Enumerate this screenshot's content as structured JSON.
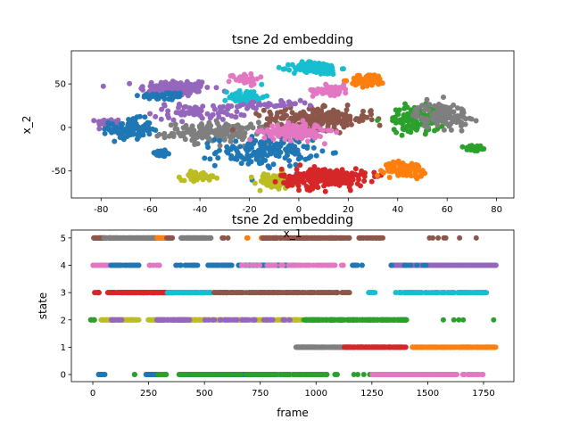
{
  "colors": {
    "blue": "#1f77b4",
    "orange": "#ff7f0e",
    "green": "#2ca02c",
    "red": "#d62728",
    "purple": "#9467bd",
    "brown": "#8c564b",
    "pink": "#e377c2",
    "gray": "#7f7f7f",
    "olive": "#bcbd22",
    "cyan": "#17becf"
  },
  "chart_data": [
    {
      "type": "scatter",
      "title": "tsne 2d embedding",
      "xlabel": "x_1",
      "ylabel": "x_2",
      "xlim": [
        -92,
        87
      ],
      "ylim": [
        -81,
        88
      ],
      "xticks": [
        -80,
        -60,
        -40,
        -20,
        0,
        20,
        40,
        60,
        80
      ],
      "yticks": [
        -50,
        0,
        50
      ],
      "note": "clusters given as center/spread in data units; points sampled deterministically",
      "clusters": [
        {
          "color": "purple",
          "cx": -50,
          "cy": 45,
          "sx": 12,
          "sy": 8,
          "n": 120
        },
        {
          "color": "blue",
          "cx": -55,
          "cy": 36,
          "sx": 8,
          "sy": 4,
          "n": 50
        },
        {
          "color": "purple",
          "cx": -77,
          "cy": 6,
          "sx": 4,
          "sy": 3,
          "n": 25
        },
        {
          "color": "blue",
          "cx": -68,
          "cy": -2,
          "sx": 7,
          "sy": 10,
          "n": 110
        },
        {
          "color": "purple",
          "cx": -40,
          "cy": 18,
          "sx": 16,
          "sy": 8,
          "n": 70
        },
        {
          "color": "gray",
          "cx": -32,
          "cy": -6,
          "sx": 18,
          "sy": 9,
          "n": 170
        },
        {
          "color": "blue",
          "cx": -14,
          "cy": -28,
          "sx": 16,
          "sy": 14,
          "n": 150
        },
        {
          "color": "blue",
          "cx": -56,
          "cy": -30,
          "sx": 4,
          "sy": 3,
          "n": 30
        },
        {
          "color": "olive",
          "cx": -40,
          "cy": -56,
          "sx": 6,
          "sy": 4,
          "n": 55
        },
        {
          "color": "olive",
          "cx": -10,
          "cy": -62,
          "sx": 6,
          "sy": 8,
          "n": 60
        },
        {
          "color": "pink",
          "cx": -22,
          "cy": 56,
          "sx": 5,
          "sy": 5,
          "n": 40
        },
        {
          "color": "cyan",
          "cx": -21,
          "cy": 35,
          "sx": 6,
          "sy": 7,
          "n": 70
        },
        {
          "color": "cyan",
          "cx": 7,
          "cy": 68,
          "sx": 8,
          "sy": 6,
          "n": 110
        },
        {
          "color": "orange",
          "cx": 28,
          "cy": 54,
          "sx": 6,
          "sy": 6,
          "n": 70
        },
        {
          "color": "pink",
          "cx": 13,
          "cy": 43,
          "sx": 6,
          "sy": 5,
          "n": 60
        },
        {
          "color": "brown",
          "cx": 8,
          "cy": 10,
          "sx": 18,
          "sy": 10,
          "n": 220
        },
        {
          "color": "pink",
          "cx": -2,
          "cy": -5,
          "sx": 10,
          "sy": 8,
          "n": 130
        },
        {
          "color": "purple",
          "cx": -12,
          "cy": 25,
          "sx": 14,
          "sy": 4,
          "n": 35
        },
        {
          "color": "green",
          "cx": 48,
          "cy": 10,
          "sx": 9,
          "sy": 12,
          "n": 140
        },
        {
          "color": "gray",
          "cx": 58,
          "cy": 14,
          "sx": 9,
          "sy": 12,
          "n": 110
        },
        {
          "color": "green",
          "cx": 71,
          "cy": -24,
          "sx": 4,
          "sy": 4,
          "n": 35
        },
        {
          "color": "red",
          "cx": 10,
          "cy": -58,
          "sx": 14,
          "sy": 9,
          "n": 260
        },
        {
          "color": "orange",
          "cx": 43,
          "cy": -48,
          "sx": 7,
          "sy": 7,
          "n": 80
        }
      ]
    },
    {
      "type": "scatter",
      "title": "tsne 2d embedding",
      "xlabel": "frame",
      "ylabel": "state",
      "xlim": [
        -96,
        1886
      ],
      "ylim": [
        -0.26,
        5.29
      ],
      "xticks": [
        0,
        250,
        500,
        750,
        1000,
        1250,
        1500,
        1750
      ],
      "yticks": [
        0,
        1,
        2,
        3,
        4,
        5
      ],
      "note": "runs of frames per state and color; density = points per 10 frames",
      "segments": [
        {
          "state": 5,
          "color": "brown",
          "from": 0,
          "to": 60,
          "d": 6
        },
        {
          "state": 5,
          "color": "gray",
          "from": 50,
          "to": 300,
          "d": 8
        },
        {
          "state": 5,
          "color": "orange",
          "from": 285,
          "to": 330,
          "d": 5
        },
        {
          "state": 5,
          "color": "brown",
          "from": 330,
          "to": 360,
          "d": 4
        },
        {
          "state": 5,
          "color": "gray",
          "from": 395,
          "to": 530,
          "d": 8
        },
        {
          "state": 5,
          "color": "brown",
          "from": 580,
          "to": 620,
          "d": 1
        },
        {
          "state": 5,
          "color": "orange",
          "from": 690,
          "to": 695,
          "d": 5
        },
        {
          "state": 5,
          "color": "orange",
          "from": 755,
          "to": 760,
          "d": 5
        },
        {
          "state": 5,
          "color": "brown",
          "from": 760,
          "to": 1150,
          "d": 5
        },
        {
          "state": 5,
          "color": "brown",
          "from": 1180,
          "to": 1310,
          "d": 2
        },
        {
          "state": 5,
          "color": "brown",
          "from": 1500,
          "to": 1745,
          "d": 0.3
        },
        {
          "state": 4,
          "color": "pink",
          "from": 0,
          "to": 70,
          "d": 8
        },
        {
          "state": 4,
          "color": "blue",
          "from": 70,
          "to": 210,
          "d": 3
        },
        {
          "state": 4,
          "color": "pink",
          "from": 245,
          "to": 305,
          "d": 1.5
        },
        {
          "state": 4,
          "color": "blue",
          "from": 365,
          "to": 470,
          "d": 2
        },
        {
          "state": 4,
          "color": "blue",
          "from": 515,
          "to": 625,
          "d": 4
        },
        {
          "state": 4,
          "color": "blue",
          "from": 650,
          "to": 915,
          "d": 5
        },
        {
          "state": 4,
          "color": "pink",
          "from": 650,
          "to": 915,
          "d": 1
        },
        {
          "state": 4,
          "color": "pink",
          "from": 915,
          "to": 1125,
          "d": 2
        },
        {
          "state": 4,
          "color": "blue",
          "from": 1155,
          "to": 1215,
          "d": 1.5
        },
        {
          "state": 4,
          "color": "purple",
          "from": 1335,
          "to": 1810,
          "d": 5
        },
        {
          "state": 4,
          "color": "blue",
          "from": 1335,
          "to": 1600,
          "d": 0.3
        },
        {
          "state": 3,
          "color": "red",
          "from": 5,
          "to": 30,
          "d": 3
        },
        {
          "state": 3,
          "color": "red",
          "from": 65,
          "to": 365,
          "d": 6
        },
        {
          "state": 3,
          "color": "cyan",
          "from": 330,
          "to": 530,
          "d": 6
        },
        {
          "state": 3,
          "color": "brown",
          "from": 530,
          "to": 1150,
          "d": 3
        },
        {
          "state": 3,
          "color": "cyan",
          "from": 1235,
          "to": 1265,
          "d": 3
        },
        {
          "state": 3,
          "color": "cyan",
          "from": 1350,
          "to": 1765,
          "d": 3
        },
        {
          "state": 2,
          "color": "green",
          "from": -10,
          "to": 10,
          "d": 4
        },
        {
          "state": 2,
          "color": "olive",
          "from": 35,
          "to": 210,
          "d": 4
        },
        {
          "state": 2,
          "color": "purple",
          "from": 80,
          "to": 130,
          "d": 4
        },
        {
          "state": 2,
          "color": "olive",
          "from": 245,
          "to": 940,
          "d": 4
        },
        {
          "state": 2,
          "color": "purple",
          "from": 285,
          "to": 435,
          "d": 6
        },
        {
          "state": 2,
          "color": "purple",
          "from": 500,
          "to": 900,
          "d": 1
        },
        {
          "state": 2,
          "color": "green",
          "from": 945,
          "to": 1405,
          "d": 6
        },
        {
          "state": 2,
          "color": "green",
          "from": 1545,
          "to": 1805,
          "d": 0.2
        },
        {
          "state": 1,
          "color": "gray",
          "from": 910,
          "to": 1125,
          "d": 8
        },
        {
          "state": 1,
          "color": "red",
          "from": 1125,
          "to": 1405,
          "d": 8
        },
        {
          "state": 1,
          "color": "orange",
          "from": 1430,
          "to": 1805,
          "d": 5
        },
        {
          "state": 0,
          "color": "blue",
          "from": 20,
          "to": 55,
          "d": 3
        },
        {
          "state": 0,
          "color": "green",
          "from": 185,
          "to": 188,
          "d": 5
        },
        {
          "state": 0,
          "color": "blue",
          "from": 235,
          "to": 290,
          "d": 4
        },
        {
          "state": 0,
          "color": "green",
          "from": 290,
          "to": 330,
          "d": 4
        },
        {
          "state": 0,
          "color": "blue",
          "from": 385,
          "to": 825,
          "d": 6
        },
        {
          "state": 0,
          "color": "green",
          "from": 385,
          "to": 825,
          "d": 2
        },
        {
          "state": 0,
          "color": "green",
          "from": 835,
          "to": 1050,
          "d": 4
        },
        {
          "state": 0,
          "color": "green",
          "from": 1065,
          "to": 1245,
          "d": 0.4
        },
        {
          "state": 0,
          "color": "pink",
          "from": 1250,
          "to": 1635,
          "d": 6
        },
        {
          "state": 0,
          "color": "pink",
          "from": 1655,
          "to": 1750,
          "d": 2
        }
      ]
    }
  ]
}
